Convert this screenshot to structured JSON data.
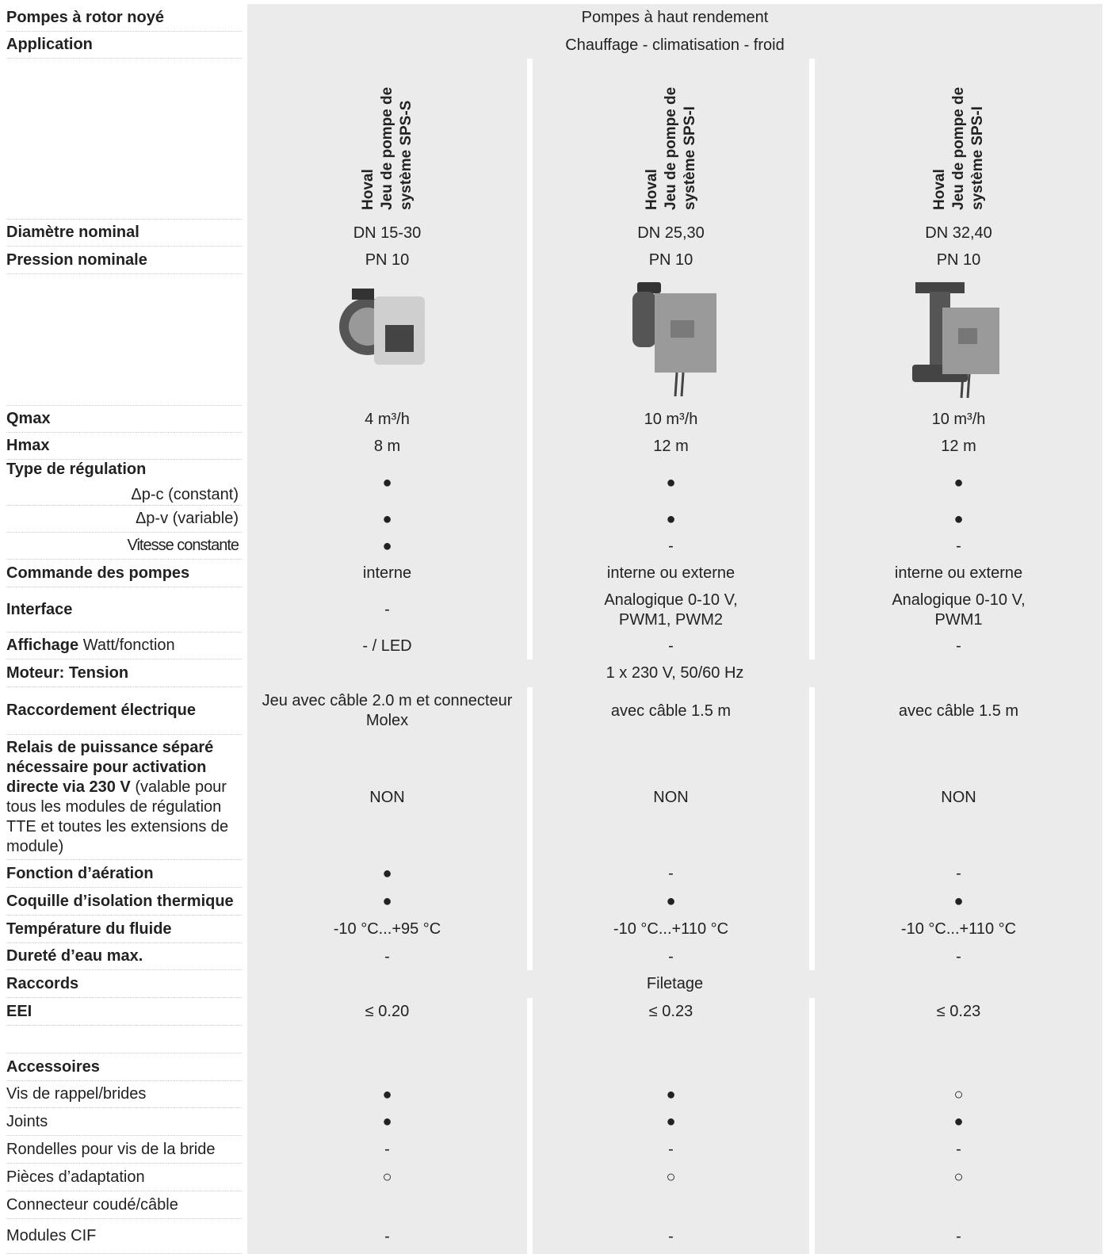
{
  "table": {
    "top": [
      {
        "label": "Pompes à rotor noyé",
        "values": [
          "Pompes à haut rendement"
        ]
      },
      {
        "label": "Application",
        "values": [
          "Chauffage - climatisation - froid"
        ]
      }
    ],
    "products": [
      [
        "Hoval",
        "Jeu de pompe de",
        "système SPS-S"
      ],
      [
        "Hoval",
        "Jeu de pompe de",
        "système SPS-I"
      ],
      [
        "Hoval",
        "Jeu de pompe de",
        "système SPS-I"
      ]
    ],
    "dimensions": [
      {
        "label": "Diamètre nominal",
        "values": [
          "DN 15-30",
          "DN 25,30",
          "DN 32,40"
        ]
      },
      {
        "label": "Pression nominale",
        "values": [
          "PN 10",
          "PN 10",
          "PN 10"
        ]
      }
    ],
    "specs": [
      {
        "label": "Qmax",
        "values": [
          "4 m³/h",
          "10 m³/h",
          "10 m³/h"
        ]
      },
      {
        "label": "Hmax",
        "values": [
          "8 m",
          "12 m",
          "12 m"
        ]
      },
      {
        "label": "Type de régulation",
        "sublabel": "Δp-c (constant)",
        "values": [
          "●",
          "●",
          "●"
        ]
      },
      {
        "sublabel": "Δp-v (variable)",
        "values": [
          "●",
          "●",
          "●"
        ]
      },
      {
        "sublabel": "Vitesse constante",
        "values": [
          "●",
          "-",
          "-"
        ]
      },
      {
        "label": "Commande des pompes",
        "values": [
          "interne",
          "interne ou externe",
          "interne ou externe"
        ]
      },
      {
        "label": "Interface",
        "values": [
          "-",
          "Analogique 0-10 V,\nPWM1, PWM2",
          "Analogique 0-10 V,\nPWM1"
        ]
      },
      {
        "label": "Affichage",
        "note": "Watt/fonction",
        "values": [
          "- / LED",
          "-",
          "-"
        ]
      },
      {
        "label": "Moteur: Tension",
        "values": [
          "1 x 230 V, 50/60 Hz"
        ]
      },
      {
        "label": "Raccordement électrique",
        "values": [
          "Jeu avec câble 2.0 m et connecteur Molex",
          "avec câble 1.5 m",
          "avec câble 1.5 m"
        ]
      },
      {
        "label": "Relais de puissance séparé nécessaire pour activation directe via 230 V",
        "note": "(valable pour tous les modules de régulation TTE et toutes les extensions de module)",
        "values": [
          "NON",
          "NON",
          "NON"
        ]
      },
      {
        "label": "Fonction d’aération",
        "values": [
          "●",
          "-",
          "-"
        ]
      },
      {
        "label": "Coquille d’isolation thermique",
        "values": [
          "●",
          "●",
          "●"
        ]
      },
      {
        "label": "Température du fluide",
        "values": [
          "-10 °C...+95 °C",
          "-10 °C...+110 °C",
          "-10 °C...+110 °C"
        ]
      },
      {
        "label": "Dureté d’eau max.",
        "values": [
          "-",
          "-",
          "-"
        ]
      },
      {
        "label": "Raccords",
        "values": [
          "Filetage"
        ]
      },
      {
        "label": "EEI",
        "values": [
          "≤ 0.20",
          "≤ 0.23",
          "≤ 0.23"
        ]
      }
    ],
    "accessories": {
      "title": "Accessoires",
      "rows": [
        {
          "label": "Vis de rappel/brides",
          "values": [
            "●",
            "●",
            "○"
          ]
        },
        {
          "label": "Joints",
          "values": [
            "●",
            "●",
            "●"
          ]
        },
        {
          "label": "Rondelles pour vis de la bride",
          "values": [
            "-",
            "-",
            "-"
          ]
        },
        {
          "label": "Pièces d’adaptation",
          "values": [
            "○",
            "○",
            "○"
          ]
        },
        {
          "label": "Connecteur coudé/câble"
        },
        {
          "label": "Modules CIF",
          "values": [
            "-",
            "-",
            "-"
          ]
        }
      ]
    }
  }
}
